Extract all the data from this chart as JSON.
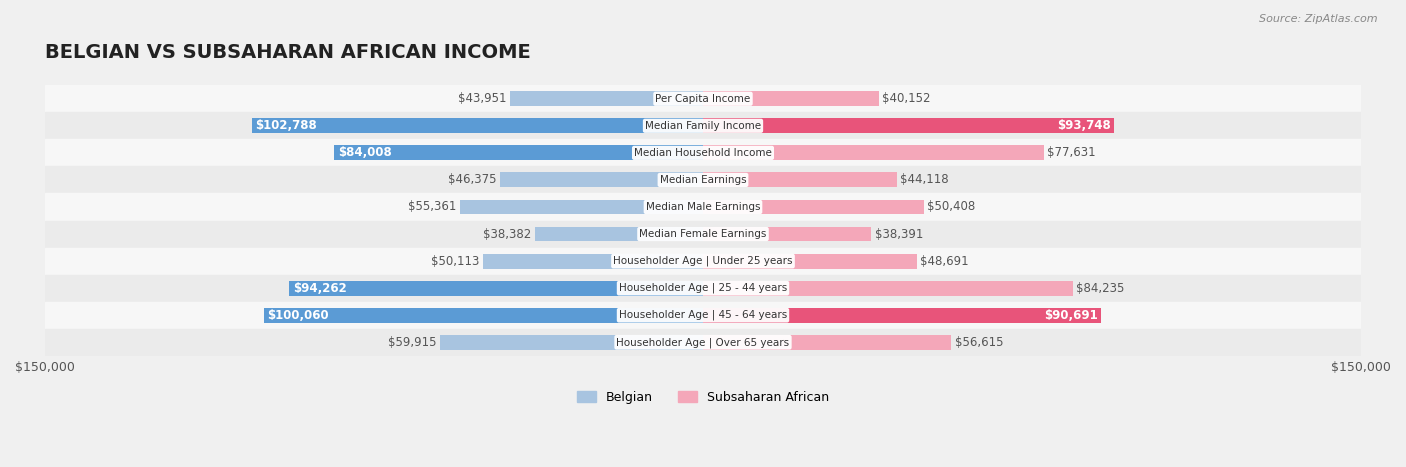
{
  "title": "BELGIAN VS SUBSAHARAN AFRICAN INCOME",
  "source": "Source: ZipAtlas.com",
  "categories": [
    "Per Capita Income",
    "Median Family Income",
    "Median Household Income",
    "Median Earnings",
    "Median Male Earnings",
    "Median Female Earnings",
    "Householder Age | Under 25 years",
    "Householder Age | 25 - 44 years",
    "Householder Age | 45 - 64 years",
    "Householder Age | Over 65 years"
  ],
  "belgian_values": [
    43951,
    102788,
    84008,
    46375,
    55361,
    38382,
    50113,
    94262,
    100060,
    59915
  ],
  "subsaharan_values": [
    40152,
    93748,
    77631,
    44118,
    50408,
    38391,
    48691,
    84235,
    90691,
    56615
  ],
  "belgian_labels": [
    "$43,951",
    "$102,788",
    "$84,008",
    "$46,375",
    "$55,361",
    "$38,382",
    "$50,113",
    "$94,262",
    "$100,060",
    "$59,915"
  ],
  "subsaharan_labels": [
    "$40,152",
    "$93,748",
    "$77,631",
    "$44,118",
    "$50,408",
    "$38,391",
    "$48,691",
    "$84,235",
    "$90,691",
    "$56,615"
  ],
  "belgian_color_normal": "#a8c4e0",
  "belgian_color_highlight": "#5b9bd5",
  "subsaharan_color_normal": "#f4a7b9",
  "subsaharan_color_highlight": "#e8547a",
  "highlight_belgian": [
    1,
    2,
    7,
    8
  ],
  "highlight_subsaharan": [
    1,
    8
  ],
  "max_value": 150000,
  "background_color": "#f0f0f0",
  "row_bg_color": "#f7f7f7",
  "row_alt_bg_color": "#ebebeb",
  "title_fontsize": 14,
  "label_fontsize": 8.5
}
